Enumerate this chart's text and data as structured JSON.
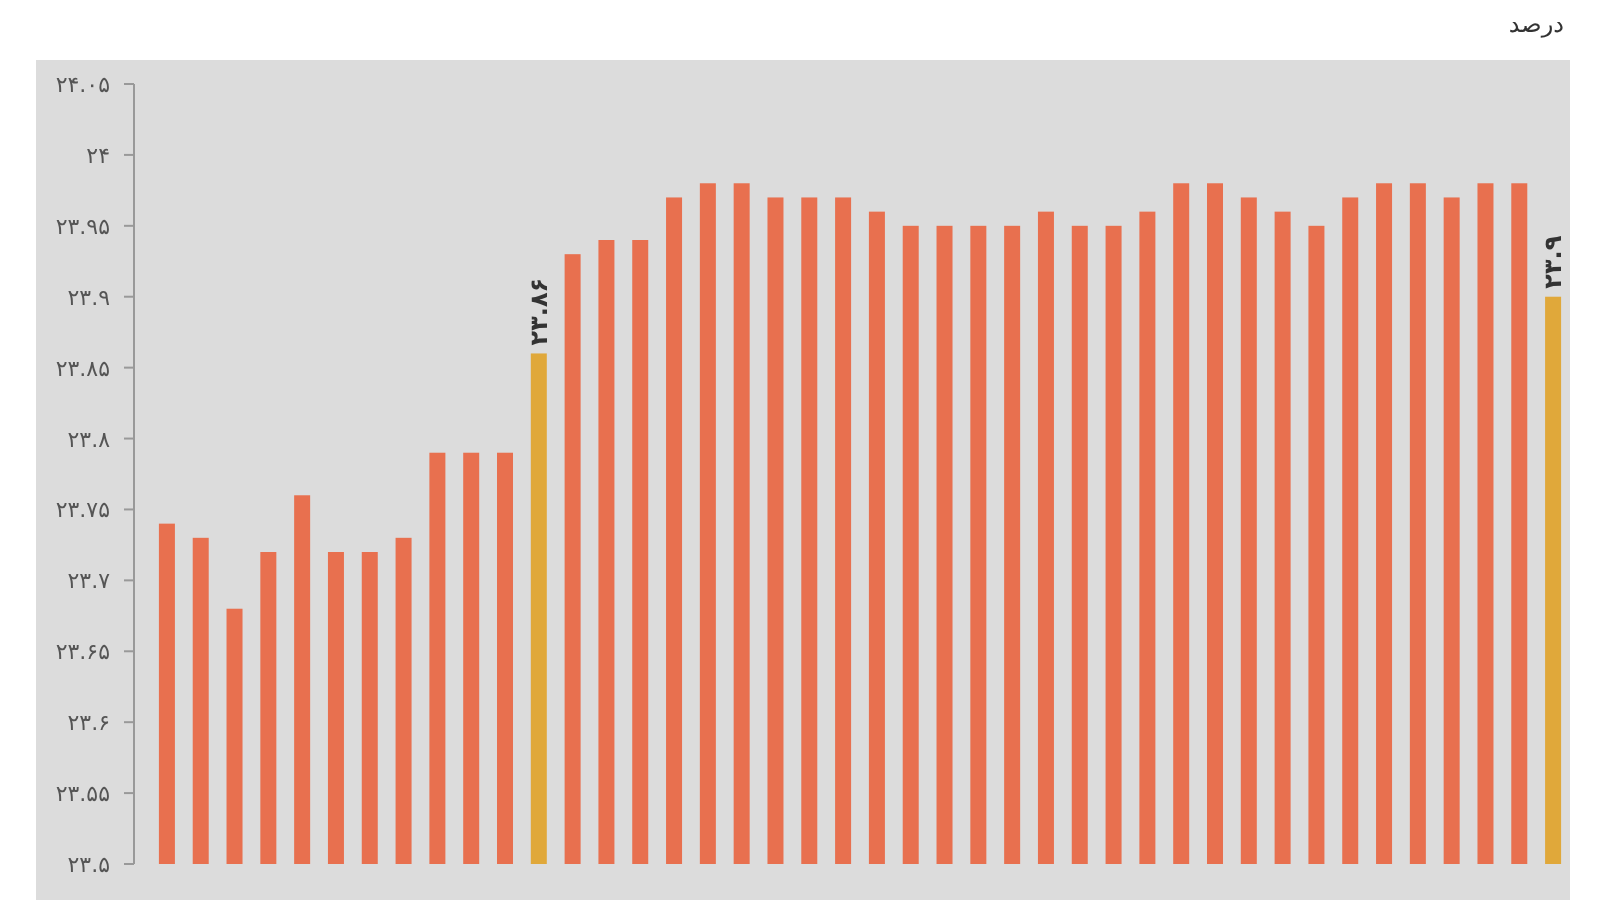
{
  "chart_data": {
    "type": "bar",
    "ylabel": "درصد",
    "categories": [
      null,
      null,
      null,
      null,
      null,
      null,
      null,
      null,
      null,
      null,
      null,
      null,
      null,
      null,
      null,
      null,
      null,
      null,
      null,
      null,
      null,
      null,
      null,
      null,
      null,
      null,
      null,
      null,
      null,
      null,
      null,
      null,
      null,
      null,
      null,
      null,
      null,
      null,
      null,
      null,
      null,
      null
    ],
    "values": [
      23.74,
      23.73,
      23.68,
      23.72,
      23.76,
      23.72,
      23.72,
      23.73,
      23.79,
      23.79,
      23.79,
      23.86,
      23.93,
      23.94,
      23.94,
      23.97,
      23.98,
      23.98,
      23.97,
      23.97,
      23.97,
      23.96,
      23.95,
      23.95,
      23.95,
      23.95,
      23.96,
      23.95,
      23.95,
      23.96,
      23.98,
      23.98,
      23.97,
      23.96,
      23.95,
      23.97,
      23.98,
      23.98,
      23.97,
      23.98,
      23.98,
      23.9
    ],
    "colors": [
      "#e8704f",
      "#e8704f",
      "#e8704f",
      "#e8704f",
      "#e8704f",
      "#e8704f",
      "#e8704f",
      "#e8704f",
      "#e8704f",
      "#e8704f",
      "#e8704f",
      "#e0a83a",
      "#e8704f",
      "#e8704f",
      "#e8704f",
      "#e8704f",
      "#e8704f",
      "#e8704f",
      "#e8704f",
      "#e8704f",
      "#e8704f",
      "#e8704f",
      "#e8704f",
      "#e8704f",
      "#e8704f",
      "#e8704f",
      "#e8704f",
      "#e8704f",
      "#e8704f",
      "#e8704f",
      "#e8704f",
      "#e8704f",
      "#e8704f",
      "#e8704f",
      "#e8704f",
      "#e8704f",
      "#e8704f",
      "#e8704f",
      "#e8704f",
      "#e8704f",
      "#e8704f",
      "#e0a83a"
    ],
    "value_labels": [
      null,
      null,
      null,
      null,
      null,
      null,
      null,
      null,
      null,
      null,
      null,
      "۲۳.۸۶",
      null,
      null,
      null,
      null,
      null,
      null,
      null,
      null,
      null,
      null,
      null,
      null,
      null,
      null,
      null,
      null,
      null,
      null,
      null,
      null,
      null,
      null,
      null,
      null,
      null,
      null,
      null,
      null,
      null,
      "۲۳.۹"
    ],
    "ylim": [
      23.5,
      24.05
    ],
    "yticks": [
      {
        "value": 23.5,
        "label": "۲۳.۵"
      },
      {
        "value": 23.55,
        "label": "۲۳.۵۵"
      },
      {
        "value": 23.6,
        "label": "۲۳.۶"
      },
      {
        "value": 23.65,
        "label": "۲۳.۶۵"
      },
      {
        "value": 23.7,
        "label": "۲۳.۷"
      },
      {
        "value": 23.75,
        "label": "۲۳.۷۵"
      },
      {
        "value": 23.8,
        "label": "۲۳.۸"
      },
      {
        "value": 23.85,
        "label": "۲۳.۸۵"
      },
      {
        "value": 23.9,
        "label": "۲۳.۹"
      },
      {
        "value": 23.95,
        "label": "۲۳.۹۵"
      },
      {
        "value": 24,
        "label": "۲۴"
      },
      {
        "value": 24.05,
        "label": "۲۴.۰۵"
      }
    ],
    "grid": false
  }
}
